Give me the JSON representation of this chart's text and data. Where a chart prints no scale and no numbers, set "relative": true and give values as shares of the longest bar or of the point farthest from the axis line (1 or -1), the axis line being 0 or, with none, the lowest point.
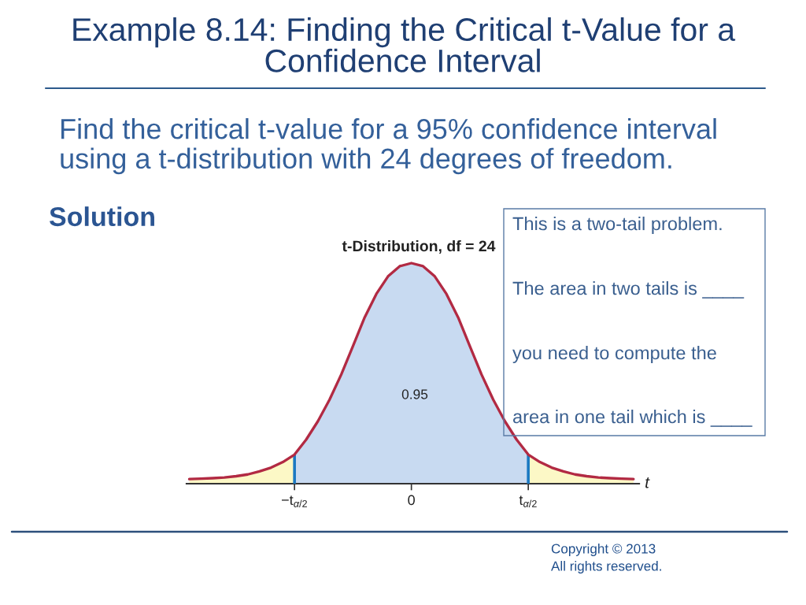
{
  "chart_data": {
    "type": "area",
    "title": "Example 8.14: Finding the Critical t-Value for a Confidence Interval",
    "subtitle": "Find the critical t-value for a 95% confidence interval using a t-distribution with 24 degrees of freedom.",
    "xlabel": "t",
    "relative": true,
    "categories": [
      null,
      null,
      null,
      null,
      null,
      null,
      null,
      null,
      null,
      "−t$_{α/2}$",
      null,
      null,
      null,
      null,
      null,
      null,
      null,
      null,
      null,
      "0",
      null,
      null,
      null,
      null,
      null,
      null,
      null,
      null,
      null,
      "t$_{α/2}$",
      null,
      null,
      null,
      null,
      null,
      null,
      null,
      null,
      null
    ],
    "series": [
      {
        "color": "#fcf8c6",
        "values": [
          0.021,
          0.023,
          0.025,
          0.028,
          0.034,
          0.042,
          0.056,
          0.073,
          0.098,
          0.132,
          null,
          null,
          null,
          null,
          null,
          null,
          null,
          null,
          null,
          null,
          null,
          null,
          null,
          null,
          null,
          null,
          null,
          null,
          null,
          null,
          null,
          null,
          null,
          null,
          null,
          null,
          null,
          null,
          null
        ]
      },
      {
        "color": "#c8daf1",
        "values": [
          null,
          null,
          null,
          null,
          null,
          null,
          null,
          null,
          null,
          0.132,
          0.2,
          0.283,
          0.381,
          0.495,
          0.624,
          0.754,
          0.86,
          0.94,
          0.986,
          1.0,
          0.986,
          0.94,
          0.86,
          0.754,
          0.624,
          0.495,
          0.381,
          0.283,
          0.2,
          0.132,
          null,
          null,
          null,
          null,
          null,
          null,
          null,
          null,
          null
        ]
      },
      {
        "color": "#fcf8c6",
        "values": [
          null,
          null,
          null,
          null,
          null,
          null,
          null,
          null,
          null,
          null,
          null,
          null,
          null,
          null,
          null,
          null,
          null,
          null,
          null,
          null,
          null,
          null,
          null,
          null,
          null,
          null,
          null,
          null,
          null,
          0.132,
          0.098,
          0.073,
          0.056,
          0.042,
          0.034,
          0.028,
          0.025,
          0.023,
          0.021
        ]
      },
      {
        "type": "line",
        "color": "#b22a43",
        "values": [
          0.021,
          0.023,
          0.025,
          0.028,
          0.034,
          0.042,
          0.056,
          0.073,
          0.098,
          0.132,
          0.2,
          0.283,
          0.381,
          0.495,
          0.624,
          0.754,
          0.86,
          0.94,
          0.986,
          1.0,
          0.986,
          0.94,
          0.86,
          0.754,
          0.624,
          0.495,
          0.381,
          0.283,
          0.2,
          0.132,
          0.098,
          0.073,
          0.056,
          0.042,
          0.034,
          0.028,
          0.025,
          0.023,
          0.021
        ]
      }
    ],
    "ref_lines": [
      {
        "axis": "x",
        "value": "−t$_{α/2}$",
        "color": "#1a78c2"
      },
      {
        "axis": "x",
        "value": "t$_{α/2}$",
        "color": "#1a78c2"
      }
    ],
    "annotations": [
      "Solution",
      "t-Distribution, df = 24",
      "This is a two-tail problem.",
      "The area in two tails is ____",
      "you need to compute the",
      "area in one tail which is ____",
      "Copyright © 2013",
      "All rights reserved.",
      "0.95"
    ]
  }
}
